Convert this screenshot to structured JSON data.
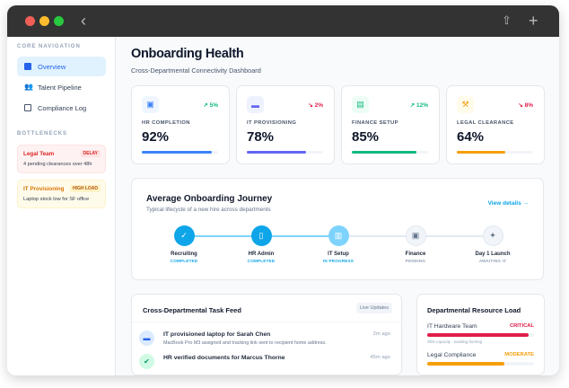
{
  "window": {
    "icons": [
      "back-icon",
      "share-icon",
      "plus-icon"
    ]
  },
  "sidebar": {
    "core_label": "CORE NAVIGATION",
    "items": [
      {
        "label": "Overview",
        "icon": "dashboard-icon",
        "active": true
      },
      {
        "label": "Talent Pipeline",
        "icon": "people-icon"
      },
      {
        "label": "Compliance Log",
        "icon": "clipboard-icon"
      }
    ],
    "bottlenecks_label": "BOTTLENECKS",
    "bottlenecks": [
      {
        "title": "Legal Team",
        "badge": "DELAY",
        "desc": "4 pending clearances over 48h",
        "color": "#dc2626"
      },
      {
        "title": "IT Provisioning",
        "badge": "HIGH LOAD",
        "desc": "Laptop stock low for SF office",
        "color": "#d97706"
      }
    ]
  },
  "header": {
    "title": "Onboarding Health",
    "subtitle": "Cross-Departmental Connectivity Dashboard"
  },
  "kpis": [
    {
      "label": "HR COMPLETION",
      "value": "92%",
      "trend": "↗ 5%",
      "trend_dir": "up",
      "progress": 92,
      "color": "#3b82f6",
      "icon": "id-badge-icon"
    },
    {
      "label": "IT PROVISIONING",
      "value": "78%",
      "trend": "↘ 2%",
      "trend_dir": "down",
      "progress": 78,
      "color": "#6366f1",
      "icon": "laptop-icon"
    },
    {
      "label": "FINANCE SETUP",
      "value": "85%",
      "trend": "↗ 12%",
      "trend_dir": "up",
      "progress": 85,
      "color": "#10b981",
      "icon": "money-icon"
    },
    {
      "label": "LEGAL CLEARANCE",
      "value": "64%",
      "trend": "↘ 8%",
      "trend_dir": "down",
      "progress": 64,
      "color": "#f59e0b",
      "icon": "gavel-icon"
    }
  ],
  "journey": {
    "title": "Average Onboarding Journey",
    "subtitle": "Typical lifecycle of a new hire across departments",
    "link": "View details →",
    "steps": [
      {
        "name": "Recruiting",
        "status": "COMPLETED",
        "icon": "user-check-icon"
      },
      {
        "name": "HR Admin",
        "status": "COMPLETED",
        "icon": "document-icon"
      },
      {
        "name": "IT Setup",
        "status": "IN PROGRESS",
        "icon": "devices-icon"
      },
      {
        "name": "Finance",
        "status": "PENDING",
        "icon": "wallet-icon"
      },
      {
        "name": "Day 1 Launch",
        "status": "AWAITING IT",
        "icon": "party-icon"
      }
    ]
  },
  "feed": {
    "title": "Cross-Departmental Task Feed",
    "badge": "Live Updates",
    "items": [
      {
        "title": "IT provisioned laptop for Sarah Chen",
        "desc": "MacBook Pro M3 assigned and tracking link sent to recipient home address.",
        "time": "2m ago",
        "icon": "laptop-icon"
      },
      {
        "title": "HR verified documents for Marcus Thorne",
        "desc": "",
        "time": "45m ago",
        "icon": "verified-icon"
      }
    ]
  },
  "resources": {
    "title": "Departmental Resource Load",
    "items": [
      {
        "name": "IT Hardware Team",
        "status": "CRITICAL",
        "load": 95,
        "note": "95% capacity - backlog forming",
        "color": "#e11d48"
      },
      {
        "name": "Legal Compliance",
        "status": "MODERATE",
        "load": 72,
        "note": "",
        "color": "#f59e0b"
      }
    ]
  }
}
